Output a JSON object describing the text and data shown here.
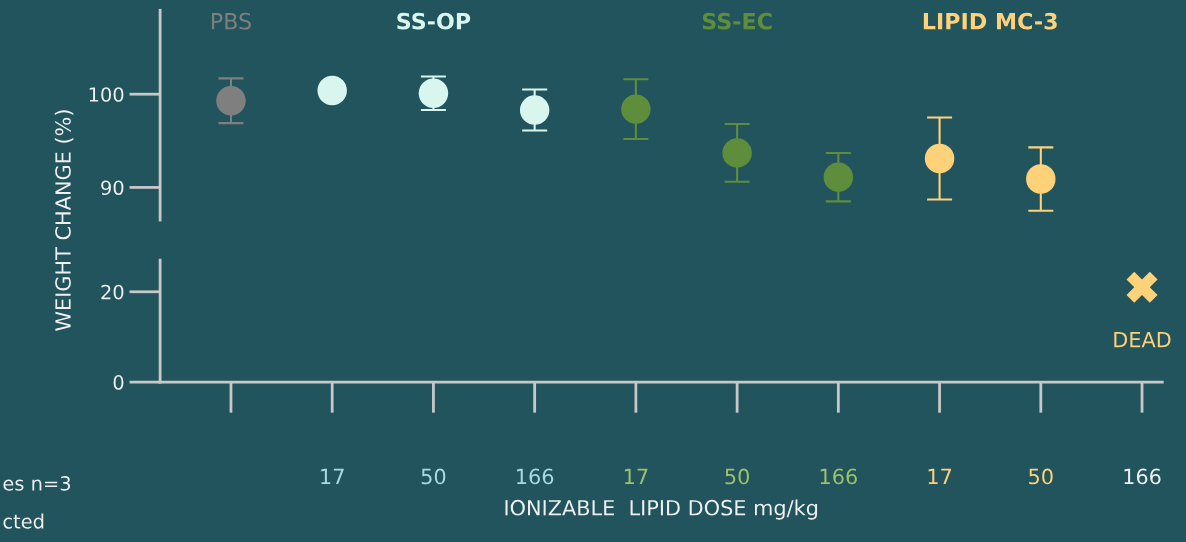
{
  "chart_data": [
    {
      "type": "scatter",
      "categories": [
        null,
        "17",
        "50",
        "166",
        "17",
        "50",
        "166",
        "17",
        "50",
        "166"
      ],
      "ylabel": "WEIGHT CHANGE (%)",
      "ylim": [
        86.5,
        109
      ],
      "yticks": [
        90,
        100
      ],
      "tick_labels": "y",
      "series": [
        {
          "name": "PBS",
          "color": "#7f7f7f",
          "values": [
            99.3,
            null,
            null,
            null,
            null,
            null,
            null,
            null,
            null,
            null
          ],
          "errors": [
            2.4,
            null,
            null,
            null,
            null,
            null,
            null,
            null,
            null,
            null
          ]
        },
        {
          "name": "SS-OP",
          "color": "#d8f5ee",
          "values": [
            null,
            100.4,
            100.1,
            98.3,
            null,
            null,
            null,
            null,
            null,
            null
          ],
          "errors": [
            null,
            null,
            1.8,
            2.2,
            null,
            null,
            null,
            null,
            null,
            null
          ]
        },
        {
          "name": "SS-EC",
          "color": "#5e8e3c",
          "values": [
            null,
            null,
            null,
            null,
            98.4,
            93.7,
            91.1,
            null,
            null,
            null
          ],
          "errors": [
            null,
            null,
            null,
            null,
            3.2,
            3.1,
            2.6,
            null,
            null,
            null
          ]
        },
        {
          "name": "LIPID MC-3",
          "color": "#ffd27a",
          "values": [
            null,
            null,
            null,
            null,
            null,
            null,
            null,
            93.1,
            90.9,
            null
          ],
          "errors": [
            null,
            null,
            null,
            null,
            null,
            null,
            null,
            4.4,
            3.4,
            null
          ]
        }
      ],
      "marker": "circle",
      "grid": false,
      "legend": false
    },
    {
      "type": "scatter",
      "categories": [
        null,
        "17",
        "50",
        "166",
        "17",
        "50",
        "166",
        "17",
        "50",
        "166"
      ],
      "xlabel": "IONIZABLE  LIPID DOSE mg/kg",
      "ylim": [
        0,
        27
      ],
      "yticks": [
        0,
        20
      ],
      "annotations": [
        "DEAD",
        "es n=3",
        "cted"
      ],
      "grid": false,
      "legend": false
    }
  ]
}
